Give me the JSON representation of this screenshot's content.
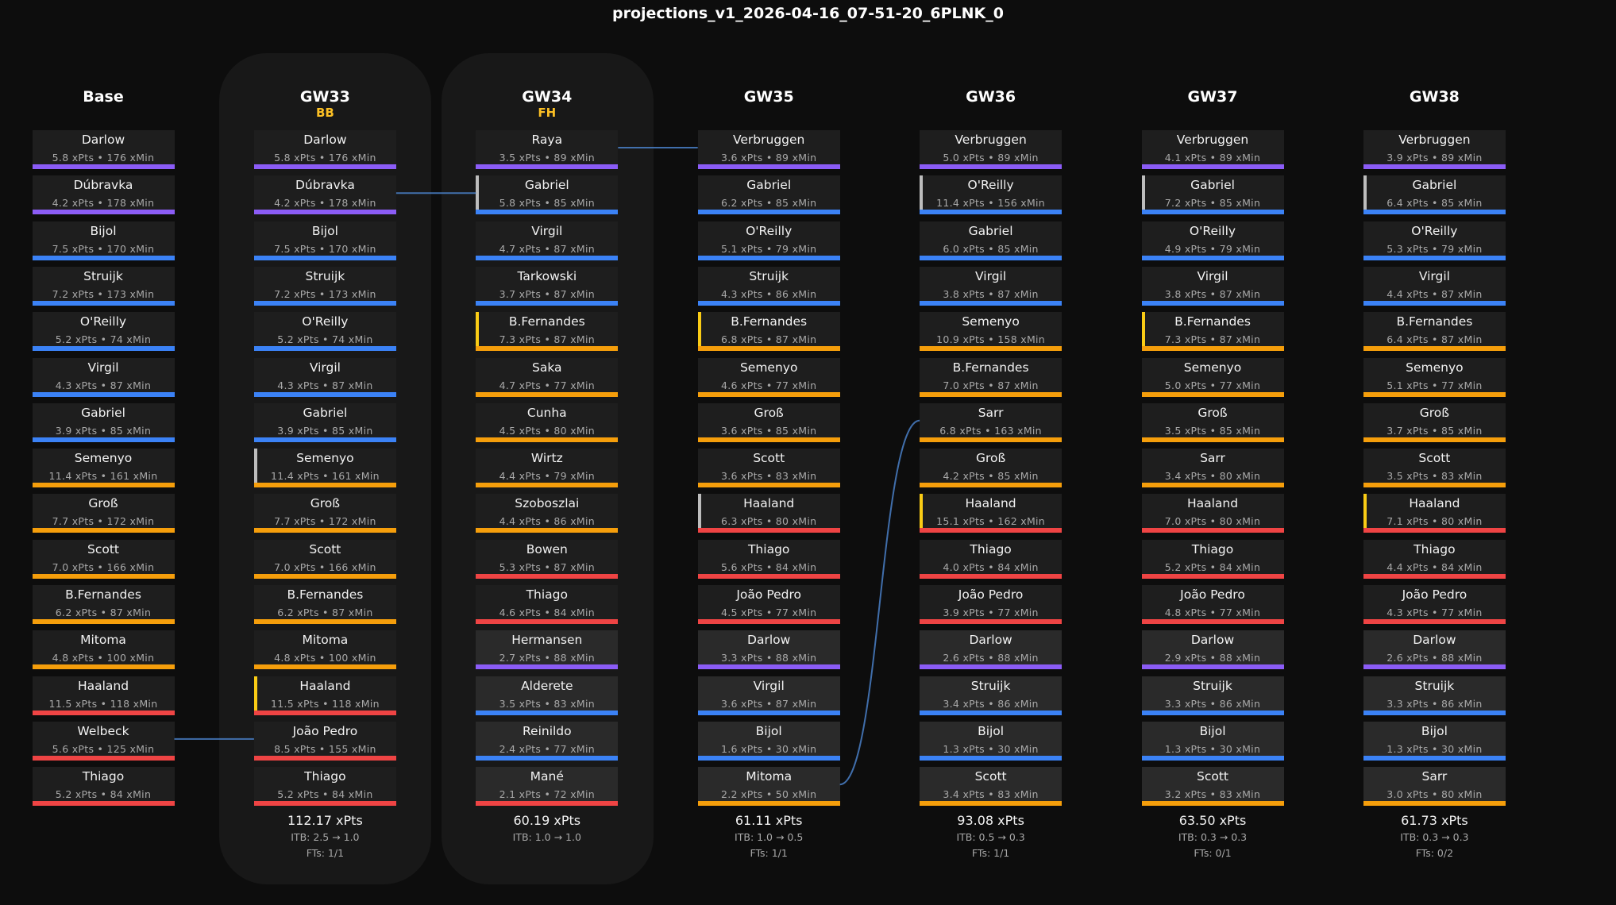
{
  "title": "projections_v1_2026-04-16_07-51-20_6PLNK_0",
  "colors": {
    "GK": "#8b5cf6",
    "DEF": "#3b82f6",
    "MID": "#f59e0b",
    "FWD": "#ef4444",
    "captain": "#facc15",
    "vice": "#bdbdbd",
    "chip": "#fbbf24",
    "transfer_line": "#4a80c8"
  },
  "columns": [
    {
      "header": "Base",
      "chip": "",
      "highlight": false,
      "bench_style": false,
      "total": "",
      "itb": "",
      "fts": "",
      "players": [
        [
          "Darlow",
          "5.8 xPts • 176 xMin",
          "GK",
          ""
        ],
        [
          "Dúbravka",
          "4.2 xPts • 178 xMin",
          "GK",
          ""
        ],
        [
          "Bijol",
          "7.5 xPts • 170 xMin",
          "DEF",
          ""
        ],
        [
          "Struijk",
          "7.2 xPts • 173 xMin",
          "DEF",
          ""
        ],
        [
          "O'Reilly",
          "5.2 xPts • 74 xMin",
          "DEF",
          ""
        ],
        [
          "Virgil",
          "4.3 xPts • 87 xMin",
          "DEF",
          ""
        ],
        [
          "Gabriel",
          "3.9 xPts • 85 xMin",
          "DEF",
          ""
        ],
        [
          "Semenyo",
          "11.4 xPts • 161 xMin",
          "MID",
          ""
        ],
        [
          "Groß",
          "7.7 xPts • 172 xMin",
          "MID",
          ""
        ],
        [
          "Scott",
          "7.0 xPts • 166 xMin",
          "MID",
          ""
        ],
        [
          "B.Fernandes",
          "6.2 xPts • 87 xMin",
          "MID",
          ""
        ],
        [
          "Mitoma",
          "4.8 xPts • 100 xMin",
          "MID",
          ""
        ],
        [
          "Haaland",
          "11.5 xPts • 118 xMin",
          "FWD",
          ""
        ],
        [
          "Welbeck",
          "5.6 xPts • 125 xMin",
          "FWD",
          ""
        ],
        [
          "Thiago",
          "5.2 xPts • 84 xMin",
          "FWD",
          ""
        ]
      ]
    },
    {
      "header": "GW33",
      "chip": "BB",
      "highlight": true,
      "bench_style": false,
      "total": "112.17 xPts",
      "itb": "ITB: 2.5 → 1.0",
      "fts": "FTs: 1/1",
      "players": [
        [
          "Darlow",
          "5.8 xPts • 176 xMin",
          "GK",
          ""
        ],
        [
          "Dúbravka",
          "4.2 xPts • 178 xMin",
          "GK",
          ""
        ],
        [
          "Bijol",
          "7.5 xPts • 170 xMin",
          "DEF",
          ""
        ],
        [
          "Struijk",
          "7.2 xPts • 173 xMin",
          "DEF",
          ""
        ],
        [
          "O'Reilly",
          "5.2 xPts • 74 xMin",
          "DEF",
          ""
        ],
        [
          "Virgil",
          "4.3 xPts • 87 xMin",
          "DEF",
          ""
        ],
        [
          "Gabriel",
          "3.9 xPts • 85 xMin",
          "DEF",
          ""
        ],
        [
          "Semenyo",
          "11.4 xPts • 161 xMin",
          "MID",
          "vice"
        ],
        [
          "Groß",
          "7.7 xPts • 172 xMin",
          "MID",
          ""
        ],
        [
          "Scott",
          "7.0 xPts • 166 xMin",
          "MID",
          ""
        ],
        [
          "B.Fernandes",
          "6.2 xPts • 87 xMin",
          "MID",
          ""
        ],
        [
          "Mitoma",
          "4.8 xPts • 100 xMin",
          "MID",
          ""
        ],
        [
          "Haaland",
          "11.5 xPts • 118 xMin",
          "FWD",
          "captain"
        ],
        [
          "João Pedro",
          "8.5 xPts • 155 xMin",
          "FWD",
          ""
        ],
        [
          "Thiago",
          "5.2 xPts • 84 xMin",
          "FWD",
          ""
        ]
      ]
    },
    {
      "header": "GW34",
      "chip": "FH",
      "highlight": true,
      "bench_style": true,
      "total": "60.19 xPts",
      "itb": "ITB: 1.0 → 1.0",
      "fts": "",
      "players": [
        [
          "Raya",
          "3.5 xPts • 89 xMin",
          "GK",
          ""
        ],
        [
          "Gabriel",
          "5.8 xPts • 85 xMin",
          "DEF",
          "vice"
        ],
        [
          "Virgil",
          "4.7 xPts • 87 xMin",
          "DEF",
          ""
        ],
        [
          "Tarkowski",
          "3.7 xPts • 87 xMin",
          "DEF",
          ""
        ],
        [
          "B.Fernandes",
          "7.3 xPts • 87 xMin",
          "MID",
          "captain"
        ],
        [
          "Saka",
          "4.7 xPts • 77 xMin",
          "MID",
          ""
        ],
        [
          "Cunha",
          "4.5 xPts • 80 xMin",
          "MID",
          ""
        ],
        [
          "Wirtz",
          "4.4 xPts • 79 xMin",
          "MID",
          ""
        ],
        [
          "Szoboszlai",
          "4.4 xPts • 86 xMin",
          "MID",
          ""
        ],
        [
          "Bowen",
          "5.3 xPts • 87 xMin",
          "FWD",
          ""
        ],
        [
          "Thiago",
          "4.6 xPts • 84 xMin",
          "FWD",
          ""
        ],
        [
          "Hermansen",
          "2.7 xPts • 88 xMin",
          "GK",
          ""
        ],
        [
          "Alderete",
          "3.5 xPts • 83 xMin",
          "DEF",
          ""
        ],
        [
          "Reinildo",
          "2.4 xPts • 77 xMin",
          "DEF",
          ""
        ],
        [
          "Mané",
          "2.1 xPts • 72 xMin",
          "FWD",
          ""
        ]
      ]
    },
    {
      "header": "GW35",
      "chip": "",
      "highlight": false,
      "bench_style": true,
      "total": "61.11 xPts",
      "itb": "ITB: 1.0 → 0.5",
      "fts": "FTs: 1/1",
      "players": [
        [
          "Verbruggen",
          "3.6 xPts • 89 xMin",
          "GK",
          ""
        ],
        [
          "Gabriel",
          "6.2 xPts • 85 xMin",
          "DEF",
          ""
        ],
        [
          "O'Reilly",
          "5.1 xPts • 79 xMin",
          "DEF",
          ""
        ],
        [
          "Struijk",
          "4.3 xPts • 86 xMin",
          "DEF",
          ""
        ],
        [
          "B.Fernandes",
          "6.8 xPts • 87 xMin",
          "MID",
          "captain"
        ],
        [
          "Semenyo",
          "4.6 xPts • 77 xMin",
          "MID",
          ""
        ],
        [
          "Groß",
          "3.6 xPts • 85 xMin",
          "MID",
          ""
        ],
        [
          "Scott",
          "3.6 xPts • 83 xMin",
          "MID",
          ""
        ],
        [
          "Haaland",
          "6.3 xPts • 80 xMin",
          "FWD",
          "vice"
        ],
        [
          "Thiago",
          "5.6 xPts • 84 xMin",
          "FWD",
          ""
        ],
        [
          "João Pedro",
          "4.5 xPts • 77 xMin",
          "FWD",
          ""
        ],
        [
          "Darlow",
          "3.3 xPts • 88 xMin",
          "GK",
          ""
        ],
        [
          "Virgil",
          "3.6 xPts • 87 xMin",
          "DEF",
          ""
        ],
        [
          "Bijol",
          "1.6 xPts • 30 xMin",
          "DEF",
          ""
        ],
        [
          "Mitoma",
          "2.2 xPts • 50 xMin",
          "MID",
          ""
        ]
      ]
    },
    {
      "header": "GW36",
      "chip": "",
      "highlight": false,
      "bench_style": true,
      "total": "93.08 xPts",
      "itb": "ITB: 0.5 → 0.3",
      "fts": "FTs: 1/1",
      "players": [
        [
          "Verbruggen",
          "5.0 xPts • 89 xMin",
          "GK",
          ""
        ],
        [
          "O'Reilly",
          "11.4 xPts • 156 xMin",
          "DEF",
          "vice"
        ],
        [
          "Gabriel",
          "6.0 xPts • 85 xMin",
          "DEF",
          ""
        ],
        [
          "Virgil",
          "3.8 xPts • 87 xMin",
          "DEF",
          ""
        ],
        [
          "Semenyo",
          "10.9 xPts • 158 xMin",
          "MID",
          ""
        ],
        [
          "B.Fernandes",
          "7.0 xPts • 87 xMin",
          "MID",
          ""
        ],
        [
          "Sarr",
          "6.8 xPts • 163 xMin",
          "MID",
          ""
        ],
        [
          "Groß",
          "4.2 xPts • 85 xMin",
          "MID",
          ""
        ],
        [
          "Haaland",
          "15.1 xPts • 162 xMin",
          "FWD",
          "captain"
        ],
        [
          "Thiago",
          "4.0 xPts • 84 xMin",
          "FWD",
          ""
        ],
        [
          "João Pedro",
          "3.9 xPts • 77 xMin",
          "FWD",
          ""
        ],
        [
          "Darlow",
          "2.6 xPts • 88 xMin",
          "GK",
          ""
        ],
        [
          "Struijk",
          "3.4 xPts • 86 xMin",
          "DEF",
          ""
        ],
        [
          "Bijol",
          "1.3 xPts • 30 xMin",
          "DEF",
          ""
        ],
        [
          "Scott",
          "3.4 xPts • 83 xMin",
          "MID",
          ""
        ]
      ]
    },
    {
      "header": "GW37",
      "chip": "",
      "highlight": false,
      "bench_style": true,
      "total": "63.50 xPts",
      "itb": "ITB: 0.3 → 0.3",
      "fts": "FTs: 0/1",
      "players": [
        [
          "Verbruggen",
          "4.1 xPts • 89 xMin",
          "GK",
          ""
        ],
        [
          "Gabriel",
          "7.2 xPts • 85 xMin",
          "DEF",
          "vice"
        ],
        [
          "O'Reilly",
          "4.9 xPts • 79 xMin",
          "DEF",
          ""
        ],
        [
          "Virgil",
          "3.8 xPts • 87 xMin",
          "DEF",
          ""
        ],
        [
          "B.Fernandes",
          "7.3 xPts • 87 xMin",
          "MID",
          "captain"
        ],
        [
          "Semenyo",
          "5.0 xPts • 77 xMin",
          "MID",
          ""
        ],
        [
          "Groß",
          "3.5 xPts • 85 xMin",
          "MID",
          ""
        ],
        [
          "Sarr",
          "3.4 xPts • 80 xMin",
          "MID",
          ""
        ],
        [
          "Haaland",
          "7.0 xPts • 80 xMin",
          "FWD",
          ""
        ],
        [
          "Thiago",
          "5.2 xPts • 84 xMin",
          "FWD",
          ""
        ],
        [
          "João Pedro",
          "4.8 xPts • 77 xMin",
          "FWD",
          ""
        ],
        [
          "Darlow",
          "2.9 xPts • 88 xMin",
          "GK",
          ""
        ],
        [
          "Struijk",
          "3.3 xPts • 86 xMin",
          "DEF",
          ""
        ],
        [
          "Bijol",
          "1.3 xPts • 30 xMin",
          "DEF",
          ""
        ],
        [
          "Scott",
          "3.2 xPts • 83 xMin",
          "MID",
          ""
        ]
      ]
    },
    {
      "header": "GW38",
      "chip": "",
      "highlight": false,
      "bench_style": true,
      "total": "61.73 xPts",
      "itb": "ITB: 0.3 → 0.3",
      "fts": "FTs: 0/2",
      "players": [
        [
          "Verbruggen",
          "3.9 xPts • 89 xMin",
          "GK",
          ""
        ],
        [
          "Gabriel",
          "6.4 xPts • 85 xMin",
          "DEF",
          "vice"
        ],
        [
          "O'Reilly",
          "5.3 xPts • 79 xMin",
          "DEF",
          ""
        ],
        [
          "Virgil",
          "4.4 xPts • 87 xMin",
          "DEF",
          ""
        ],
        [
          "B.Fernandes",
          "6.4 xPts • 87 xMin",
          "MID",
          ""
        ],
        [
          "Semenyo",
          "5.1 xPts • 77 xMin",
          "MID",
          ""
        ],
        [
          "Groß",
          "3.7 xPts • 85 xMin",
          "MID",
          ""
        ],
        [
          "Scott",
          "3.5 xPts • 83 xMin",
          "MID",
          ""
        ],
        [
          "Haaland",
          "7.1 xPts • 80 xMin",
          "FWD",
          "captain"
        ],
        [
          "Thiago",
          "4.4 xPts • 84 xMin",
          "FWD",
          ""
        ],
        [
          "João Pedro",
          "4.3 xPts • 77 xMin",
          "FWD",
          ""
        ],
        [
          "Darlow",
          "2.6 xPts • 88 xMin",
          "GK",
          ""
        ],
        [
          "Struijk",
          "3.3 xPts • 86 xMin",
          "DEF",
          ""
        ],
        [
          "Bijol",
          "1.3 xPts • 30 xMin",
          "DEF",
          ""
        ],
        [
          "Sarr",
          "3.0 xPts • 80 xMin",
          "MID",
          ""
        ]
      ]
    }
  ],
  "transfers": [
    {
      "gw": "GW33",
      "out": "Welbeck",
      "in": "João Pedro"
    },
    {
      "gw": "GW34",
      "out": "Dúbravka",
      "in": "Gabriel"
    },
    {
      "gw": "GW35",
      "out": "Raya",
      "in": "Verbruggen"
    },
    {
      "gw": "GW36",
      "out": "Mitoma",
      "in": "Sarr"
    }
  ]
}
